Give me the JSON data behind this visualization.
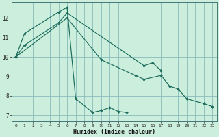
{
  "xlabel": "Humidex (Indice chaleur)",
  "bg_color": "#cceedd",
  "grid_color": "#88bbbb",
  "line_color": "#1a6b5a",
  "xlim": [
    -0.5,
    23.5
  ],
  "ylim": [
    6.7,
    12.8
  ],
  "xticks": [
    0,
    1,
    2,
    3,
    4,
    5,
    6,
    7,
    8,
    9,
    10,
    11,
    12,
    13,
    14,
    15,
    16,
    17,
    18,
    19,
    20,
    21,
    22,
    23
  ],
  "yticks": [
    7,
    8,
    9,
    10,
    11,
    12
  ],
  "line1_x": [
    0,
    1,
    5,
    6,
    15,
    16,
    17
  ],
  "line1_y": [
    10.0,
    10.6,
    11.75,
    12.25,
    9.55,
    9.7,
    9.3
  ],
  "line2_x": [
    0,
    1,
    5,
    6,
    7,
    9,
    10,
    11,
    12,
    13
  ],
  "line2_y": [
    10.0,
    11.2,
    12.3,
    12.55,
    7.85,
    7.15,
    7.25,
    7.4,
    7.2,
    7.15
  ],
  "line3_x": [
    0,
    6,
    10,
    14,
    15,
    17,
    18,
    19,
    20,
    22,
    23
  ],
  "line3_y": [
    10.0,
    12.0,
    9.85,
    9.05,
    8.85,
    9.05,
    8.5,
    8.35,
    7.85,
    7.6,
    7.45
  ]
}
